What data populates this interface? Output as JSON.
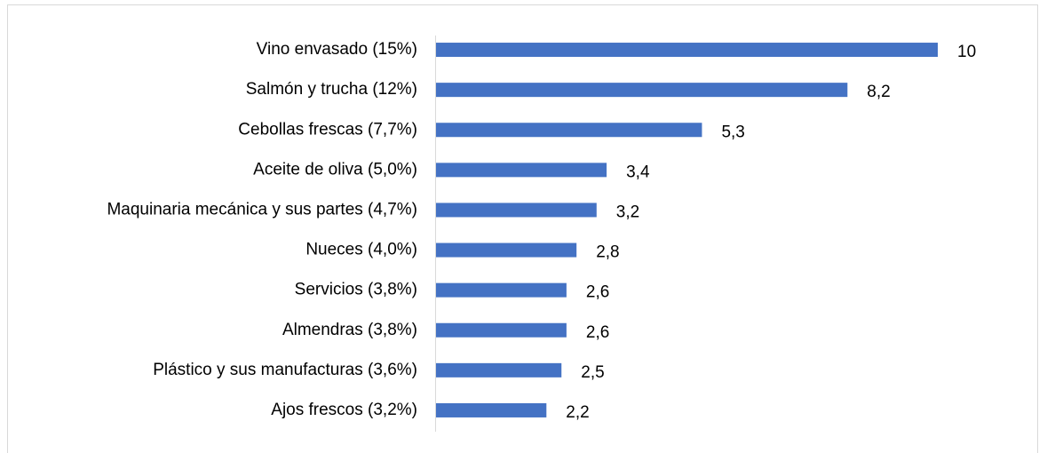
{
  "chart_data": {
    "type": "hbar",
    "categories": [
      "Vino envasado (15%)",
      "Salmón y trucha (12%)",
      "Cebollas frescas (7,7%)",
      "Aceite de oliva (5,0%)",
      "Maquinaria mecánica y sus partes (4,7%)",
      "Nueces (4,0%)",
      "Servicios (3,8%)",
      "Almendras (3,8%)",
      "Plástico y sus manufacturas (3,6%)",
      "Ajos frescos (3,2%)"
    ],
    "values": [
      10,
      8.2,
      5.3,
      3.4,
      3.2,
      2.8,
      2.6,
      2.6,
      2.5,
      2.2
    ],
    "value_labels": [
      "10",
      "8,2",
      "5,3",
      "3,4",
      "3,2",
      "2,8",
      "2,6",
      "2,6",
      "2,5",
      "2,2"
    ],
    "color": "#4472c4"
  }
}
